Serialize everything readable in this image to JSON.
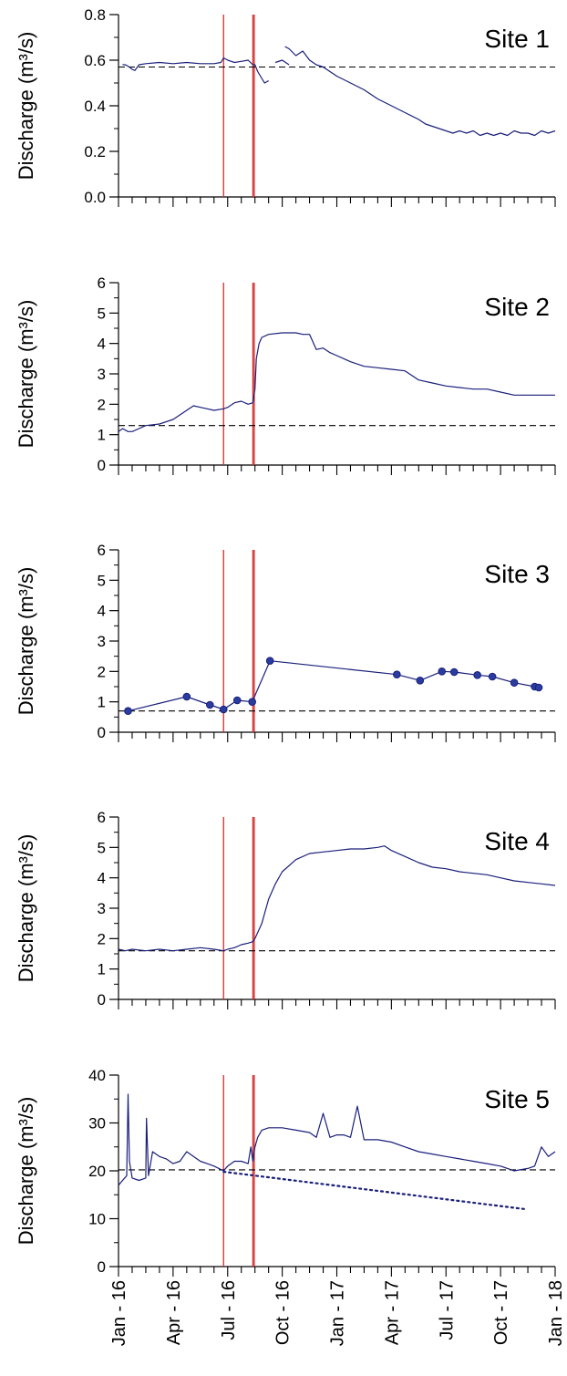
{
  "chart_data": [
    {
      "type": "line",
      "title": "Site 1",
      "ylabel": "Discharge (m³/s)",
      "ylim": [
        0,
        0.8
      ],
      "yticks": [
        "0.0",
        "0.2",
        "0.4",
        "0.6",
        "0.8"
      ],
      "ytick_values": [
        0,
        0.2,
        0.4,
        0.6,
        0.8
      ],
      "reference_line": 0.57,
      "event_dates": [
        7.7,
        9.85,
        9.95
      ],
      "series": [
        {
          "style": "solid",
          "x": [
            0.3,
            0.5,
            0.8,
            1.0,
            1.2,
            1.5,
            2.0,
            3.0,
            4.0,
            5.0,
            6.0,
            7.0,
            7.5,
            7.7,
            8.0,
            8.5,
            9.0,
            9.5,
            9.85
          ],
          "y": [
            0.58,
            0.58,
            0.57,
            0.56,
            0.555,
            0.58,
            0.585,
            0.59,
            0.585,
            0.59,
            0.585,
            0.585,
            0.59,
            0.61,
            0.6,
            0.59,
            0.595,
            0.6,
            0.58
          ]
        },
        {
          "style": "solid",
          "x": [
            9.85,
            10.0,
            10.2,
            10.5,
            10.7,
            11.0
          ],
          "y": [
            0.58,
            0.58,
            0.55,
            0.52,
            0.5,
            0.51
          ]
        },
        {
          "style": "solid",
          "x": [
            11.5,
            12.0,
            12.5
          ],
          "y": [
            0.59,
            0.6,
            0.58
          ]
        },
        {
          "style": "solid",
          "x": [
            12.2,
            12.5,
            13.0,
            13.5,
            14.0,
            14.5,
            15.0,
            16.0,
            17.0,
            18.0,
            19.0,
            20.0,
            21.0,
            22.0,
            22.5,
            23.0,
            23.5,
            24.0
          ],
          "y": [
            0.66,
            0.65,
            0.62,
            0.64,
            0.6,
            0.58,
            0.57,
            0.53,
            0.5,
            0.47,
            0.43,
            0.4,
            0.37,
            0.34,
            0.32,
            0.31,
            0.3,
            0.29
          ]
        },
        {
          "style": "solid",
          "x": [
            24.0,
            24.5,
            25.0,
            25.5,
            26.0,
            26.5,
            27.0,
            27.5,
            28.0,
            28.5,
            29.0,
            29.5,
            30.0,
            30.5,
            31.0,
            31.5,
            32.0
          ],
          "y": [
            0.29,
            0.28,
            0.29,
            0.28,
            0.29,
            0.27,
            0.28,
            0.27,
            0.28,
            0.27,
            0.29,
            0.28,
            0.28,
            0.27,
            0.29,
            0.28,
            0.29
          ]
        }
      ],
      "points": {
        "x": [],
        "y": []
      }
    },
    {
      "type": "line",
      "title": "Site 2",
      "ylabel": "Discharge (m³/s)",
      "ylim": [
        0,
        6
      ],
      "yticks": [
        "0",
        "1",
        "2",
        "3",
        "4",
        "5",
        "6"
      ],
      "ytick_values": [
        0,
        1,
        2,
        3,
        4,
        5,
        6
      ],
      "reference_line": 1.3,
      "event_dates": [
        7.7,
        9.85,
        9.95
      ],
      "series": [
        {
          "style": "solid",
          "x": [
            0.0,
            0.3,
            0.7,
            1.0,
            1.5,
            2.0,
            3.0,
            4.0,
            5.0,
            5.5,
            6.0,
            6.5,
            7.0,
            7.7,
            8.0,
            8.5,
            9.0,
            9.5,
            9.85,
            10.0,
            10.1,
            10.3,
            10.5,
            11.0,
            12.0,
            13.0,
            13.5,
            14.0,
            14.5,
            15.0,
            15.5,
            16.0,
            17.0,
            18.0,
            19.0,
            20.0,
            21.0,
            22.0,
            23.0,
            24.0,
            25.0,
            26.0,
            27.0,
            28.0,
            29.0,
            30.0,
            31.0,
            32.0
          ],
          "y": [
            1.1,
            1.2,
            1.1,
            1.1,
            1.2,
            1.3,
            1.35,
            1.5,
            1.8,
            1.95,
            1.9,
            1.85,
            1.8,
            1.85,
            1.9,
            2.05,
            2.1,
            2.0,
            2.05,
            2.5,
            3.5,
            4.0,
            4.2,
            4.3,
            4.35,
            4.35,
            4.3,
            4.3,
            3.8,
            3.85,
            3.7,
            3.6,
            3.4,
            3.25,
            3.2,
            3.15,
            3.1,
            2.8,
            2.7,
            2.6,
            2.55,
            2.5,
            2.5,
            2.4,
            2.3,
            2.3,
            2.3,
            2.3
          ]
        }
      ],
      "points": {
        "x": [],
        "y": []
      }
    },
    {
      "type": "line",
      "title": "Site 3",
      "ylabel": "Discharge (m³/s)",
      "ylim": [
        0,
        6
      ],
      "yticks": [
        "0",
        "1",
        "2",
        "3",
        "4",
        "5",
        "6"
      ],
      "ytick_values": [
        0,
        1,
        2,
        3,
        4,
        5,
        6
      ],
      "reference_line": 0.7,
      "event_dates": [
        7.7,
        9.85,
        9.95
      ],
      "series": [
        {
          "style": "solid",
          "x": [
            0.7,
            5.0,
            6.7,
            7.7,
            8.7,
            9.8,
            11.1,
            20.4,
            22.1,
            23.7,
            24.6,
            26.3,
            27.4,
            29.0,
            30.5,
            30.8
          ],
          "y": [
            0.7,
            1.17,
            0.9,
            0.75,
            1.05,
            1.0,
            2.35,
            1.9,
            1.7,
            2.0,
            1.98,
            1.88,
            1.83,
            1.63,
            1.5,
            1.47
          ]
        }
      ],
      "points": {
        "x": [
          0.7,
          5.0,
          6.7,
          7.7,
          8.7,
          9.8,
          11.1,
          20.4,
          22.1,
          23.7,
          24.6,
          26.3,
          27.4,
          29.0,
          30.5,
          30.8
        ],
        "y": [
          0.7,
          1.17,
          0.9,
          0.75,
          1.05,
          1.0,
          2.35,
          1.9,
          1.7,
          2.0,
          1.98,
          1.88,
          1.83,
          1.63,
          1.5,
          1.47
        ]
      }
    },
    {
      "type": "line",
      "title": "Site 4",
      "ylabel": "Discharge (m³/s)",
      "ylim": [
        0,
        6
      ],
      "yticks": [
        "0",
        "1",
        "2",
        "3",
        "4",
        "5",
        "6"
      ],
      "ytick_values": [
        0,
        1,
        2,
        3,
        4,
        5,
        6
      ],
      "reference_line": 1.6,
      "event_dates": [
        7.7,
        9.85,
        9.95
      ],
      "series": [
        {
          "style": "solid",
          "x": [
            0.0,
            0.5,
            1.0,
            2.0,
            3.0,
            4.0,
            5.0,
            6.0,
            7.0,
            7.7,
            8.0,
            8.5,
            9.0,
            9.5,
            9.85,
            10.0,
            10.5,
            11.0,
            11.5,
            12.0,
            13.0,
            14.0,
            15.0,
            16.0,
            17.0,
            18.0,
            19.0,
            19.5,
            20.0,
            21.0,
            22.0,
            23.0,
            24.0,
            25.0,
            26.0,
            27.0,
            28.0,
            29.0,
            30.0,
            31.0,
            32.0
          ],
          "y": [
            1.65,
            1.6,
            1.65,
            1.6,
            1.65,
            1.6,
            1.65,
            1.7,
            1.65,
            1.6,
            1.65,
            1.7,
            1.8,
            1.85,
            1.9,
            2.0,
            2.5,
            3.3,
            3.8,
            4.2,
            4.6,
            4.8,
            4.85,
            4.9,
            4.95,
            4.95,
            5.0,
            5.05,
            4.9,
            4.7,
            4.5,
            4.35,
            4.3,
            4.2,
            4.15,
            4.1,
            4.0,
            3.9,
            3.85,
            3.8,
            3.75
          ]
        }
      ],
      "points": {
        "x": [],
        "y": []
      }
    },
    {
      "type": "line",
      "title": "Site 5",
      "ylabel": "Discharge (m³/s)",
      "ylim": [
        0,
        40
      ],
      "yticks": [
        "0",
        "10",
        "20",
        "30",
        "40"
      ],
      "ytick_values": [
        0,
        10,
        20,
        30,
        40
      ],
      "reference_line": 20.2,
      "event_dates": [
        7.7,
        9.85,
        9.95
      ],
      "series": [
        {
          "style": "solid",
          "x": [
            0.0,
            0.3,
            0.6,
            0.7,
            0.8,
            1.0,
            1.5,
            2.0,
            2.05,
            2.2,
            2.5,
            3.0,
            3.5,
            4.0,
            4.5,
            5.0,
            5.5,
            6.0,
            6.5,
            7.0,
            7.7,
            8.0,
            8.5,
            9.0,
            9.5,
            9.7,
            9.85,
            10.0,
            10.2,
            10.5,
            11.0,
            12.0,
            13.0,
            14.0,
            14.5,
            15.0,
            15.5,
            16.0,
            16.5,
            17.0,
            17.5,
            18.0,
            19.0,
            20.0,
            21.0,
            22.0,
            23.0,
            24.0,
            25.0,
            26.0,
            27.0,
            28.0,
            29.0,
            30.0,
            30.5,
            31.0,
            31.5,
            32.0
          ],
          "y": [
            17.0,
            18.0,
            19.0,
            36.0,
            22.0,
            18.5,
            18.0,
            18.5,
            31.0,
            19.0,
            24.0,
            23.0,
            22.5,
            21.5,
            22.0,
            24.0,
            23.0,
            22.0,
            21.5,
            21.0,
            20.0,
            21.0,
            22.0,
            22.0,
            21.5,
            25.0,
            22.0,
            25.0,
            27.0,
            28.5,
            29.0,
            29.0,
            28.5,
            28.0,
            27.0,
            32.0,
            27.0,
            27.5,
            27.5,
            27.0,
            33.5,
            26.5,
            26.5,
            26.0,
            25.0,
            24.0,
            23.5,
            23.0,
            22.5,
            22.0,
            21.5,
            21.0,
            20.0,
            20.5,
            21.0,
            25.0,
            23.0,
            24.0
          ]
        },
        {
          "style": "dotted",
          "x": [
            7.7,
            29.8
          ],
          "y": [
            19.8,
            12.0
          ]
        }
      ],
      "points": {
        "x": [],
        "y": []
      }
    }
  ],
  "x_axis": {
    "domain": [
      0,
      32
    ],
    "tick_positions": [
      0,
      1,
      2,
      3,
      4,
      5,
      6,
      7,
      8,
      9,
      10,
      11,
      12,
      13,
      14,
      15,
      16,
      17,
      18,
      19,
      20,
      21,
      22,
      23,
      24,
      25,
      26,
      27,
      28,
      29,
      30,
      31,
      32
    ],
    "labels": [
      "Jan - 16",
      "Apr - 16",
      "Jul - 16",
      "Oct - 16",
      "Jan - 17",
      "Apr - 17",
      "Jul - 17",
      "Oct - 17",
      "Jan - 18"
    ],
    "label_positions": [
      0,
      4,
      8,
      12,
      16,
      20,
      24,
      28,
      32
    ]
  },
  "colors": {
    "line": "#1a1f7a",
    "event": "#d42a2a",
    "reference": "#000000",
    "axis": "#000000"
  }
}
